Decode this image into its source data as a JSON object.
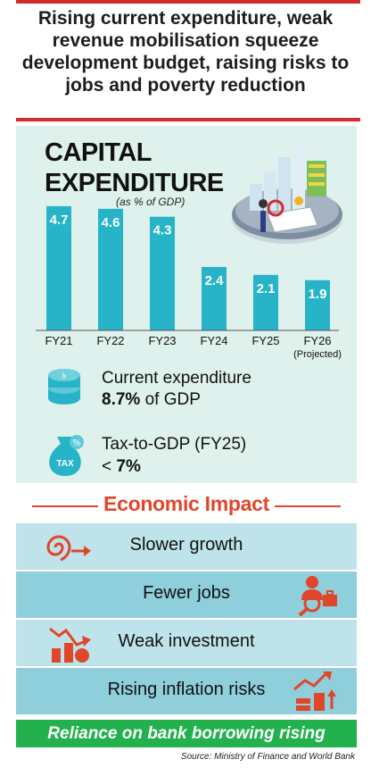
{
  "headline": "Rising current expenditure, weak revenue mobilisation squeeze development budget, raising risks to jobs and poverty reduction",
  "chart_data": {
    "type": "bar",
    "title": "CAPITAL EXPENDITURE",
    "unit": "(as % of GDP)",
    "categories": [
      "FY21",
      "FY22",
      "FY23",
      "FY24",
      "FY25",
      "FY26"
    ],
    "category_notes": [
      "",
      "",
      "",
      "",
      "",
      "(Projected)"
    ],
    "values": [
      4.7,
      4.6,
      4.3,
      2.4,
      2.1,
      1.9
    ],
    "value_labels": [
      "4.7",
      "4.6",
      "4.3",
      "2.4",
      "2.1",
      "1.9"
    ],
    "ylim": [
      0,
      5
    ],
    "grid": false,
    "bar_color": "#27b4c8"
  },
  "indicators": {
    "current": {
      "label": "Current expenditure",
      "value": "8.7%",
      "suffix": " of GDP"
    },
    "tax": {
      "label": "Tax-to-GDP (FY25)",
      "symbol": "<",
      "value": "7%",
      "icon_text": "TAX"
    }
  },
  "impact": {
    "title": "Economic Impact",
    "items": [
      {
        "label": "Slower growth",
        "icon": "spiral-arrow-icon"
      },
      {
        "label": "Fewer jobs",
        "icon": "job-search-icon"
      },
      {
        "label": "Weak investment",
        "icon": "falling-chart-icon"
      },
      {
        "label": "Rising inflation risks",
        "icon": "rising-prices-icon"
      }
    ]
  },
  "footer": {
    "banner": "Reliance on bank borrowing rising",
    "source": "Source: Ministry of Finance and World Bank"
  },
  "colors": {
    "accent_red": "#d52a2e",
    "impact_orange": "#e0462a",
    "panel_mint": "#dff1ec",
    "row_light": "#bfe3ea",
    "row_dark": "#8fcfdc",
    "banner_green": "#22b14c"
  }
}
